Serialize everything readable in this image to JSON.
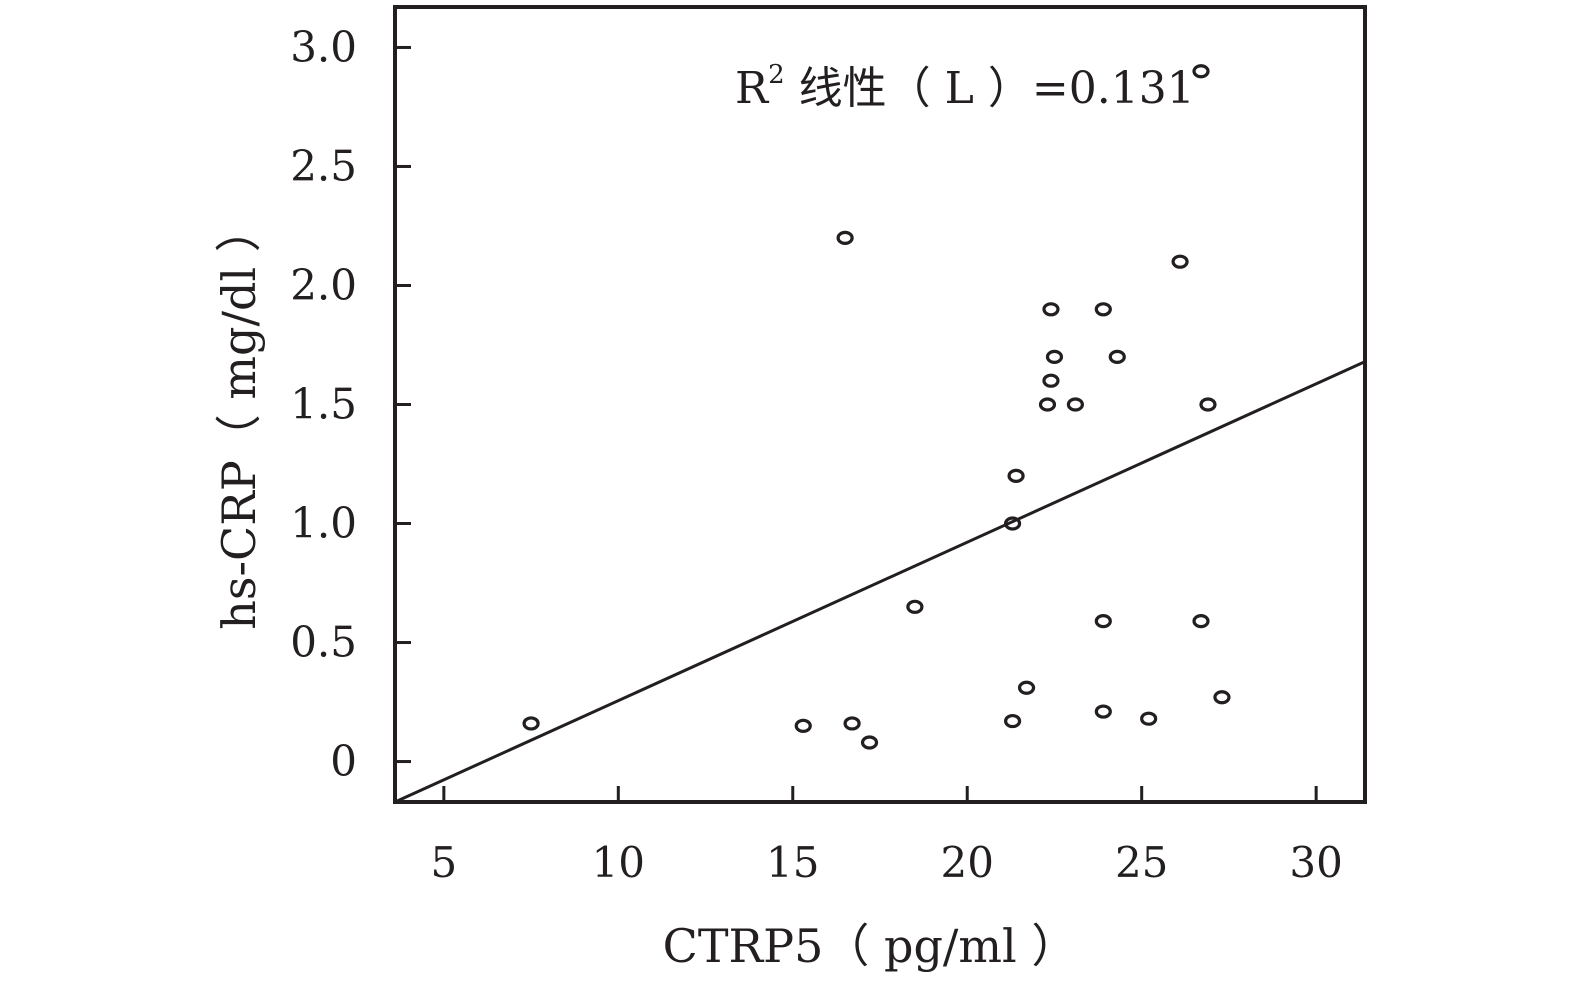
{
  "chart_data": {
    "type": "scatter",
    "xlabel": "CTRP5（ pg/ml ）",
    "ylabel": "hs-CRP（ mg/dl ）",
    "annotation": {
      "prefix": "R",
      "superscript": "2",
      "suffix": " 线性（ L ）=0.131"
    },
    "xlim": [
      3.6,
      31.4
    ],
    "ylim": [
      -0.17,
      3.17
    ],
    "x_ticks": [
      5,
      10,
      15,
      20,
      25,
      30
    ],
    "x_tick_labels": [
      "5",
      "10",
      "15",
      "20",
      "25",
      "30"
    ],
    "y_ticks": [
      0,
      0.5,
      1.0,
      1.5,
      2.0,
      2.5,
      3.0
    ],
    "y_tick_labels": [
      "0",
      "0.5",
      "1.0",
      "1.5",
      "2.0",
      "2.5",
      "3.0"
    ],
    "grid": false,
    "points": [
      {
        "x": 7.5,
        "y": 0.16
      },
      {
        "x": 15.3,
        "y": 0.15
      },
      {
        "x": 16.5,
        "y": 2.2
      },
      {
        "x": 16.7,
        "y": 0.16
      },
      {
        "x": 17.2,
        "y": 0.08
      },
      {
        "x": 18.5,
        "y": 0.65
      },
      {
        "x": 21.3,
        "y": 0.17
      },
      {
        "x": 21.3,
        "y": 1.0
      },
      {
        "x": 21.4,
        "y": 1.2
      },
      {
        "x": 21.7,
        "y": 0.31
      },
      {
        "x": 22.3,
        "y": 1.5
      },
      {
        "x": 22.4,
        "y": 1.6
      },
      {
        "x": 22.4,
        "y": 1.9
      },
      {
        "x": 22.5,
        "y": 1.7
      },
      {
        "x": 23.1,
        "y": 1.5
      },
      {
        "x": 23.9,
        "y": 1.9
      },
      {
        "x": 23.9,
        "y": 0.59
      },
      {
        "x": 23.9,
        "y": 0.21
      },
      {
        "x": 24.3,
        "y": 1.7
      },
      {
        "x": 25.2,
        "y": 0.18
      },
      {
        "x": 26.1,
        "y": 2.1
      },
      {
        "x": 26.7,
        "y": 2.9
      },
      {
        "x": 26.7,
        "y": 0.59
      },
      {
        "x": 26.9,
        "y": 1.5
      },
      {
        "x": 27.3,
        "y": 0.27
      }
    ],
    "fit_line": [
      {
        "x": 3.6,
        "y": -0.17
      },
      {
        "x": 31.4,
        "y": 1.68
      }
    ],
    "colors": {
      "ink": "#231f20",
      "background": "#ffffff"
    }
  }
}
